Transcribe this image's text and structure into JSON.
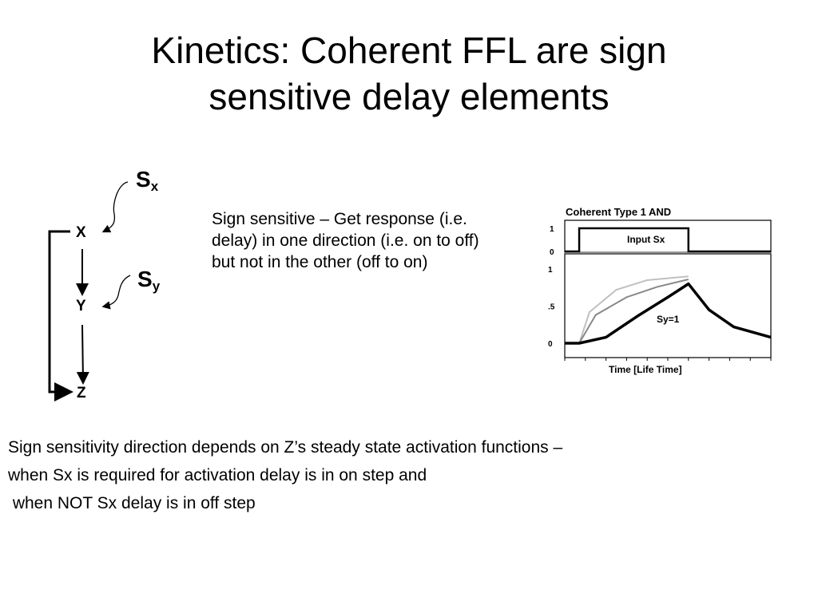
{
  "slide": {
    "title_lines": [
      "Kinetics: Coherent FFL are sign",
      "sensitive delay elements"
    ]
  },
  "network": {
    "nodes": [
      "X",
      "Y",
      "Z"
    ],
    "signals": {
      "sx_main": "S",
      "sx_sub": "x",
      "sy_main": "S",
      "sy_sub": "y"
    }
  },
  "description": "Sign sensitive – Get response (i.e. delay) in one direction (i.e. on to off) but not in the other (off to on)",
  "footer_lines": [
    "Sign sensitivity direction depends on Z’s steady state activation functions –",
    "when Sx is required for activation delay is in on step and",
    " when NOT Sx delay is in off step"
  ],
  "chart_data": {
    "type": "line",
    "title": "Coherent Type 1 AND",
    "xlabel": "Time [Life Time]",
    "input_panel": {
      "label": "Input Sx",
      "y_ticks": [
        "1",
        "0"
      ],
      "x": [
        0,
        0.07,
        0.07,
        0.6,
        0.6,
        1.0
      ],
      "values": [
        0,
        0,
        1,
        1,
        0,
        0
      ]
    },
    "response_panel": {
      "y_ticks": [
        "1",
        ".5",
        "0"
      ],
      "annotation": "Sy=1",
      "series": [
        {
          "color": "#000000",
          "x": [
            0,
            0.07,
            0.2,
            0.35,
            0.5,
            0.6,
            0.7,
            0.82,
            1.0
          ],
          "values": [
            0,
            0,
            0.08,
            0.36,
            0.62,
            0.8,
            0.45,
            0.22,
            0.08
          ]
        },
        {
          "color": "#888888",
          "x": [
            0,
            0.07,
            0.15,
            0.3,
            0.45,
            0.6
          ],
          "values": [
            0,
            0,
            0.38,
            0.62,
            0.76,
            0.86
          ]
        },
        {
          "color": "#c0c0c0",
          "x": [
            0,
            0.07,
            0.12,
            0.25,
            0.4,
            0.6
          ],
          "values": [
            0,
            0,
            0.42,
            0.72,
            0.85,
            0.9
          ]
        }
      ]
    }
  }
}
